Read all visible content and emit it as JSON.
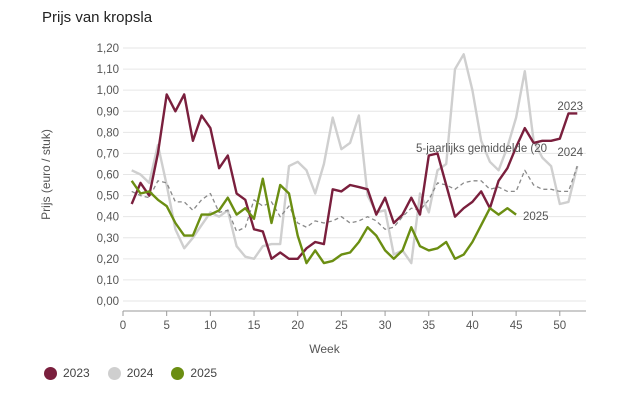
{
  "title": "Prijs van kropsla",
  "colors": {
    "s2023": "#7a1f3d",
    "s2024": "#cfcfcf",
    "s2025": "#6b8e12",
    "avg": "#8a8a8a",
    "grid": "#e6e6e6"
  },
  "legend": [
    {
      "label": "2023",
      "key": "s2023"
    },
    {
      "label": "2024",
      "key": "s2024"
    },
    {
      "label": "2025",
      "key": "s2025"
    }
  ],
  "chart_data": {
    "type": "line",
    "xlabel": "Week",
    "ylabel": "Prijs (euro / stuk)",
    "xlim": [
      0,
      53
    ],
    "ylim": [
      0,
      1.2
    ],
    "xticks": [
      "0",
      "5",
      "10",
      "15",
      "20",
      "25",
      "30",
      "35",
      "40",
      "45",
      "50"
    ],
    "yticks": [
      "0,00",
      "0,10",
      "0,20",
      "0,30",
      "0,40",
      "0,50",
      "0,60",
      "0,70",
      "0,80",
      "0,90",
      "1,00",
      "1,10",
      "1,20"
    ],
    "grid": true,
    "series": [
      {
        "name": "2023",
        "label": "2023",
        "color_key": "s2023",
        "dash": false,
        "x": [
          1,
          2,
          3,
          4,
          5,
          6,
          7,
          8,
          9,
          10,
          11,
          12,
          13,
          14,
          15,
          16,
          17,
          18,
          19,
          20,
          21,
          22,
          23,
          24,
          25,
          26,
          27,
          28,
          29,
          30,
          31,
          32,
          33,
          34,
          35,
          36,
          37,
          38,
          39,
          40,
          41,
          42,
          43,
          44,
          45,
          46,
          47,
          48,
          49,
          50,
          51,
          52
        ],
        "values": [
          0.46,
          0.56,
          0.5,
          0.7,
          0.98,
          0.9,
          0.98,
          0.76,
          0.88,
          0.82,
          0.63,
          0.69,
          0.51,
          0.48,
          0.34,
          0.33,
          0.2,
          0.23,
          0.2,
          0.2,
          0.25,
          0.28,
          0.27,
          0.53,
          0.52,
          0.55,
          0.54,
          0.53,
          0.41,
          0.49,
          0.37,
          0.41,
          0.49,
          0.41,
          0.69,
          0.7,
          0.55,
          0.4,
          0.44,
          0.47,
          0.52,
          0.44,
          0.57,
          0.63,
          0.73,
          0.82,
          0.75,
          0.76,
          0.76,
          0.77,
          0.89,
          0.89
        ]
      },
      {
        "name": "2024",
        "label": "2024",
        "color_key": "s2024",
        "dash": false,
        "x": [
          1,
          2,
          3,
          4,
          5,
          6,
          7,
          8,
          9,
          10,
          11,
          12,
          13,
          14,
          15,
          16,
          17,
          18,
          19,
          20,
          21,
          22,
          23,
          24,
          25,
          26,
          27,
          28,
          29,
          30,
          31,
          32,
          33,
          34,
          35,
          36,
          37,
          38,
          39,
          40,
          41,
          42,
          43,
          44,
          45,
          46,
          47,
          48,
          49,
          50,
          51,
          52
        ],
        "values": [
          0.62,
          0.6,
          0.56,
          0.74,
          0.55,
          0.34,
          0.25,
          0.3,
          0.36,
          0.42,
          0.4,
          0.43,
          0.26,
          0.21,
          0.2,
          0.26,
          0.27,
          0.27,
          0.64,
          0.66,
          0.62,
          0.51,
          0.65,
          0.87,
          0.72,
          0.75,
          0.88,
          0.5,
          0.42,
          0.43,
          0.22,
          0.24,
          0.18,
          0.51,
          0.42,
          0.62,
          0.65,
          1.1,
          1.17,
          1.0,
          0.76,
          0.66,
          0.62,
          0.73,
          0.87,
          1.09,
          0.76,
          0.68,
          0.64,
          0.46,
          0.47,
          0.64
        ]
      },
      {
        "name": "2025",
        "label": "2025",
        "color_key": "s2025",
        "dash": false,
        "x": [
          1,
          2,
          3,
          4,
          5,
          6,
          7,
          8,
          9,
          10,
          11,
          12,
          13,
          14,
          15,
          16,
          17,
          18,
          19,
          20,
          21,
          22,
          23,
          24,
          25,
          26,
          27,
          28,
          29,
          30,
          31,
          32,
          33,
          34,
          35,
          36,
          37,
          38,
          39,
          40,
          41,
          42,
          43,
          44,
          45
        ],
        "values": [
          0.57,
          0.51,
          0.52,
          0.48,
          0.45,
          0.37,
          0.31,
          0.31,
          0.41,
          0.41,
          0.43,
          0.49,
          0.41,
          0.44,
          0.39,
          0.58,
          0.37,
          0.55,
          0.51,
          0.31,
          0.18,
          0.24,
          0.18,
          0.19,
          0.22,
          0.23,
          0.28,
          0.35,
          0.31,
          0.24,
          0.2,
          0.24,
          0.35,
          0.26,
          0.24,
          0.25,
          0.28,
          0.2,
          0.22,
          0.28,
          0.36,
          0.44,
          0.41,
          0.44,
          0.41
        ]
      },
      {
        "name": "5-jaarlijks gemiddelde (20",
        "label": "5-jaarlijks gemiddelde (20",
        "color_key": "avg",
        "dash": true,
        "x": [
          1,
          2,
          3,
          4,
          5,
          6,
          7,
          8,
          9,
          10,
          11,
          12,
          13,
          14,
          15,
          16,
          17,
          18,
          19,
          20,
          21,
          22,
          23,
          24,
          25,
          26,
          27,
          28,
          29,
          30,
          31,
          32,
          33,
          34,
          35,
          36,
          37,
          38,
          39,
          40,
          41,
          42,
          43,
          44,
          45,
          46,
          47,
          48,
          49,
          50,
          51,
          52
        ],
        "values": [
          0.52,
          0.5,
          0.49,
          0.57,
          0.56,
          0.47,
          0.47,
          0.43,
          0.48,
          0.51,
          0.42,
          0.43,
          0.33,
          0.35,
          0.48,
          0.45,
          0.47,
          0.4,
          0.45,
          0.37,
          0.35,
          0.38,
          0.37,
          0.38,
          0.4,
          0.37,
          0.38,
          0.4,
          0.38,
          0.34,
          0.35,
          0.4,
          0.44,
          0.43,
          0.48,
          0.56,
          0.55,
          0.53,
          0.56,
          0.57,
          0.57,
          0.53,
          0.54,
          0.52,
          0.52,
          0.62,
          0.55,
          0.53,
          0.53,
          0.52,
          0.52,
          0.64
        ]
      }
    ]
  }
}
